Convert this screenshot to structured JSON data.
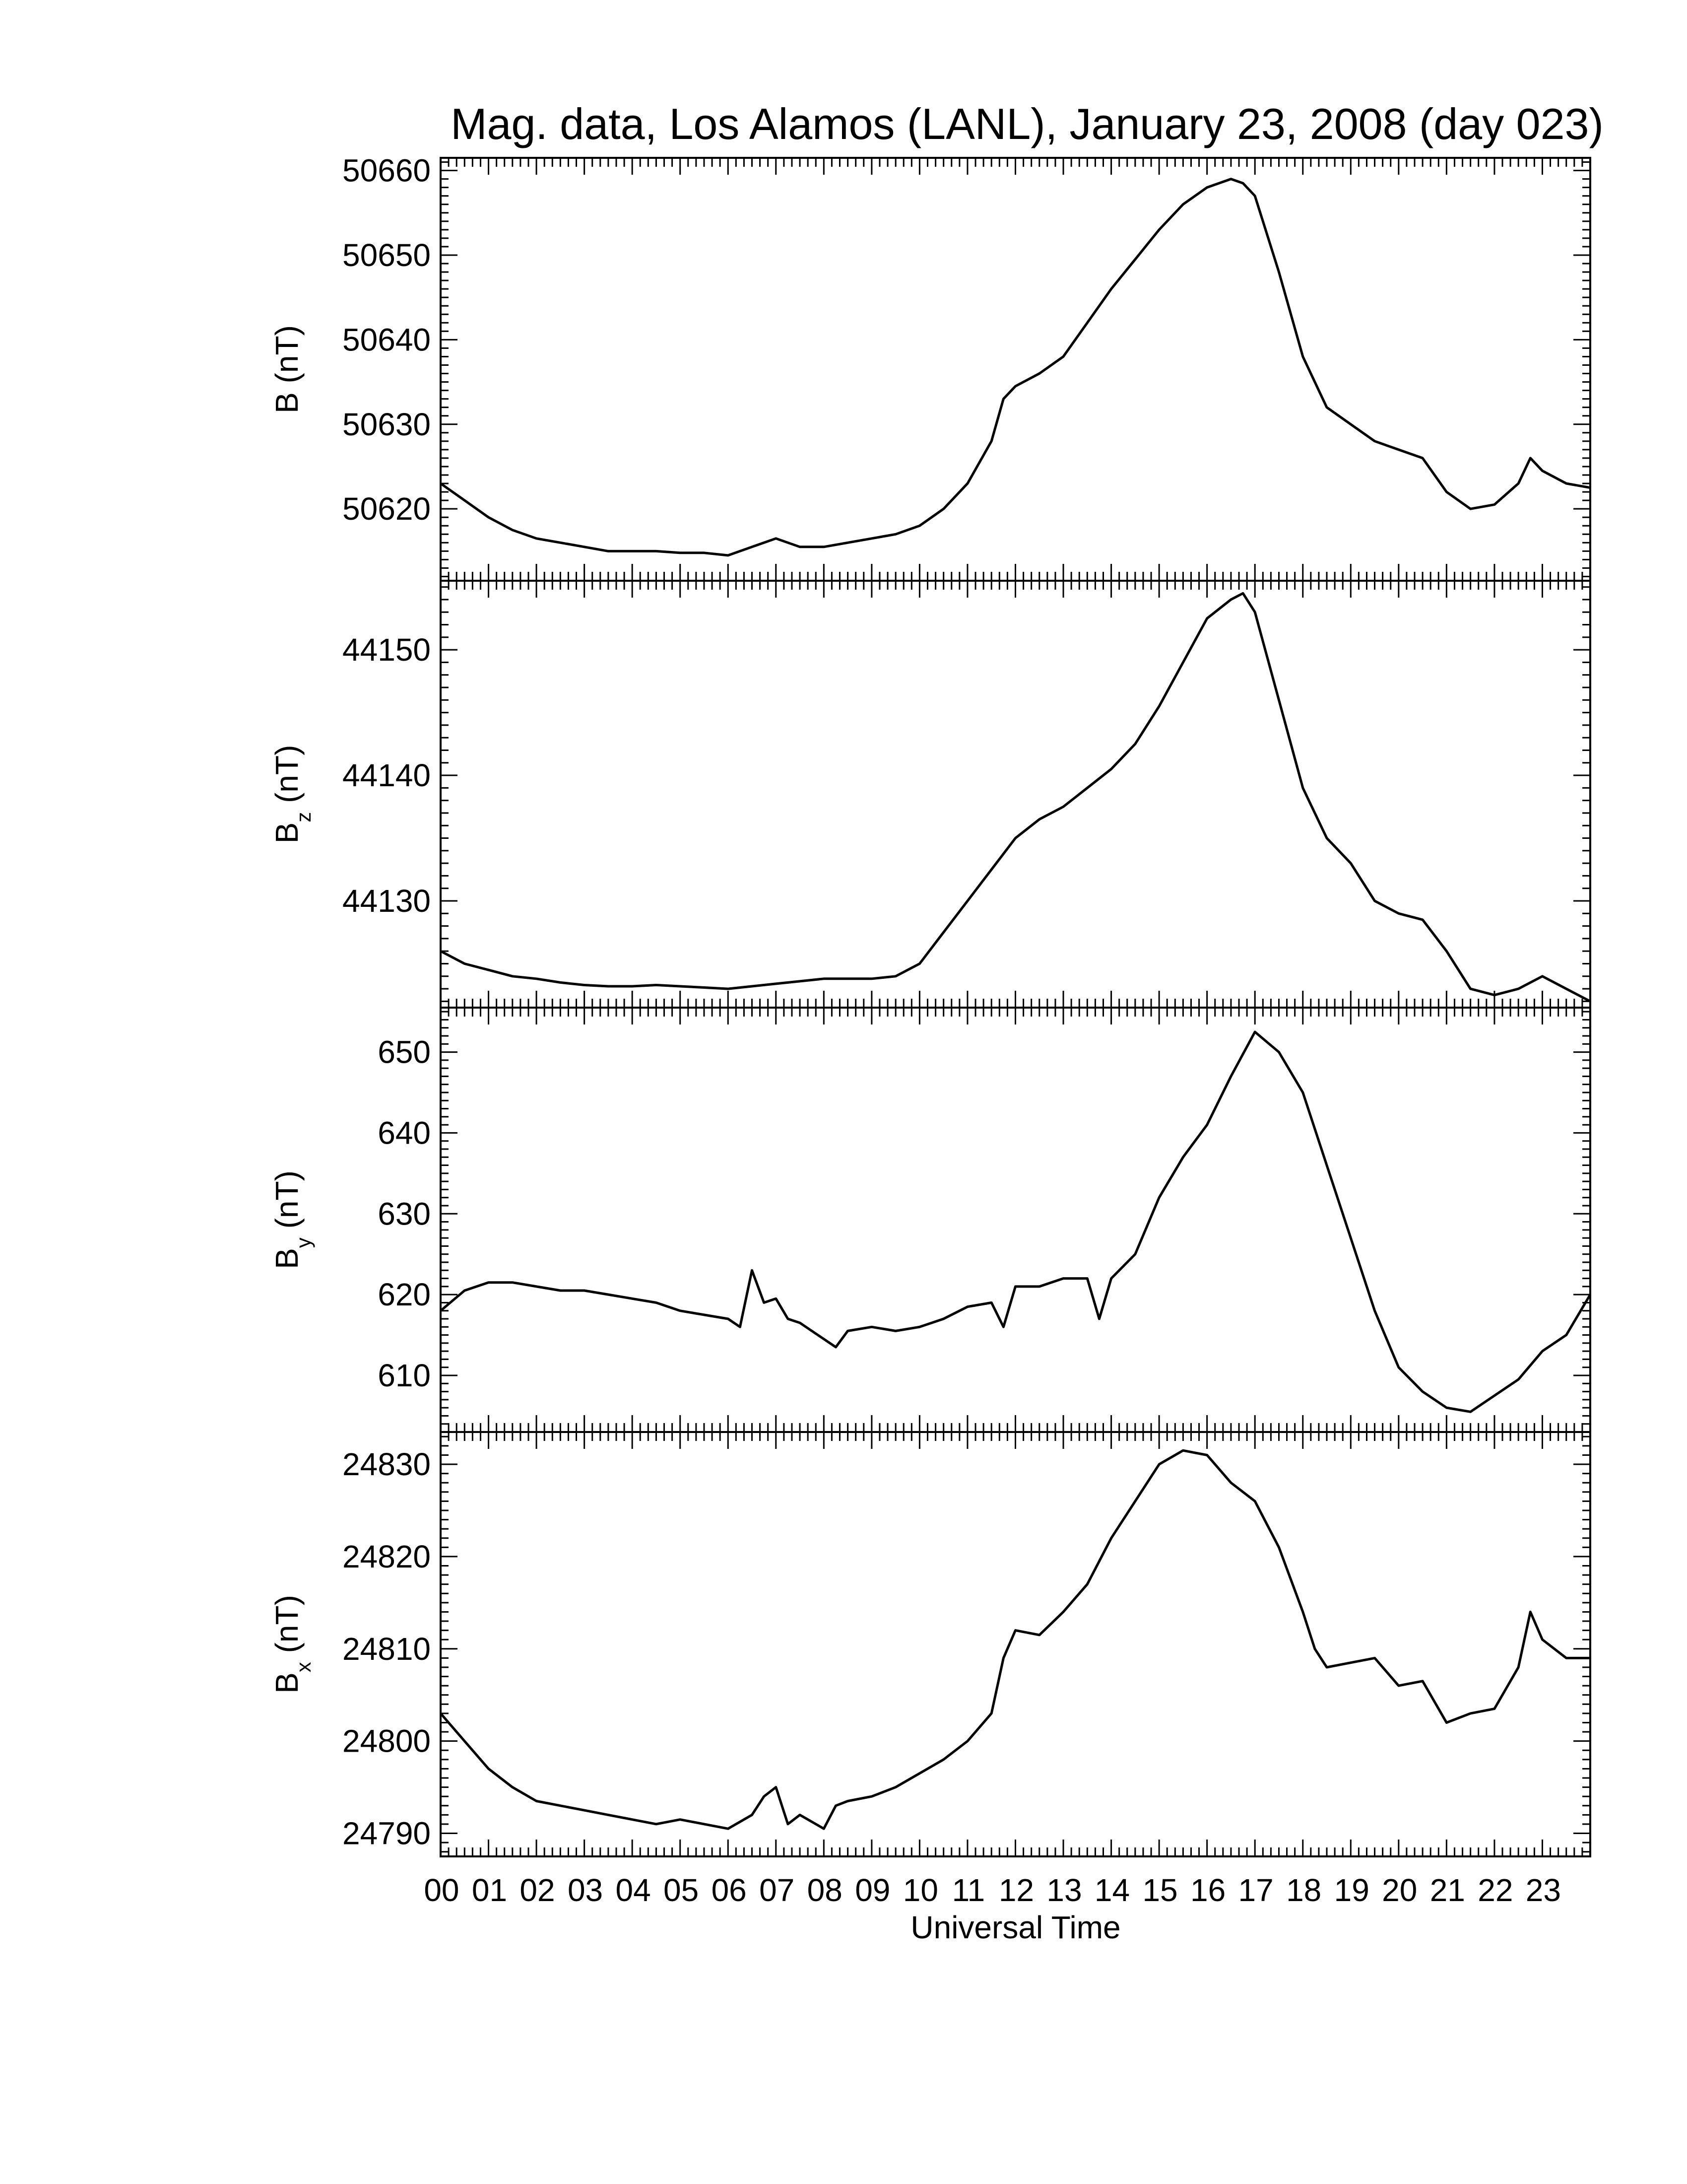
{
  "figure": {
    "title": "Mag. data, Los Alamos (LANL), January 23, 2008 (day 023)",
    "xlabel": "Universal Time",
    "xticks": [
      "00",
      "01",
      "02",
      "03",
      "04",
      "05",
      "06",
      "07",
      "08",
      "09",
      "10",
      "11",
      "12",
      "13",
      "14",
      "15",
      "16",
      "17",
      "18",
      "19",
      "20",
      "21",
      "22",
      "23"
    ]
  },
  "chart_data": [
    {
      "type": "line",
      "ylabel": "B (nT)",
      "ylabel_main": "B",
      "ylabel_sub": "",
      "ylabel_unit": " (nT)",
      "ylim": [
        50611.5,
        50661.5
      ],
      "yticks": [
        50620,
        50630,
        50640,
        50650,
        50660
      ],
      "xlim": [
        0,
        24
      ],
      "x": [
        0,
        0.5,
        1,
        1.5,
        2,
        2.5,
        3,
        3.5,
        4,
        4.5,
        5,
        5.5,
        6,
        6.5,
        7,
        7.5,
        8,
        8.5,
        9,
        9.5,
        10,
        10.5,
        11,
        11.5,
        11.75,
        12,
        12.5,
        13,
        13.5,
        14,
        14.5,
        15,
        15.5,
        16,
        16.25,
        16.5,
        16.75,
        17,
        17.5,
        18,
        18.5,
        19,
        19.5,
        20,
        20.5,
        21,
        21.5,
        22,
        22.5,
        22.75,
        23,
        23.5,
        24
      ],
      "values": [
        50623,
        50621,
        50619,
        50617.5,
        50616.5,
        50616,
        50615.5,
        50615,
        50615,
        50615,
        50614.8,
        50614.8,
        50614.5,
        50615.5,
        50616.5,
        50615.5,
        50615.5,
        50616,
        50616.5,
        50617,
        50618,
        50620,
        50623,
        50628,
        50633,
        50634.5,
        50636,
        50638,
        50642,
        50646,
        50649.5,
        50653,
        50656,
        50658,
        50658.5,
        50659,
        50658.5,
        50657,
        50648,
        50638,
        50632,
        50630,
        50628,
        50627,
        50626,
        50622,
        50620,
        50620.5,
        50623,
        50626,
        50624.5,
        50623,
        50622.5
      ]
    },
    {
      "type": "line",
      "ylabel": "Bz (nT)",
      "ylabel_main": "B",
      "ylabel_sub": "z",
      "ylabel_unit": " (nT)",
      "ylim": [
        44121.5,
        44155.5
      ],
      "yticks": [
        44130,
        44140,
        44150
      ],
      "xlim": [
        0,
        24
      ],
      "x": [
        0,
        0.5,
        1,
        1.5,
        2,
        2.5,
        3,
        3.5,
        4,
        4.5,
        5,
        5.5,
        6,
        6.5,
        7,
        7.5,
        8,
        8.5,
        9,
        9.5,
        10,
        10.5,
        11,
        11.5,
        12,
        12.5,
        13,
        13.5,
        14,
        14.5,
        15,
        15.5,
        16,
        16.5,
        16.75,
        17,
        17.5,
        18,
        18.5,
        19,
        19.5,
        20,
        20.5,
        21,
        21.5,
        22,
        22.5,
        23,
        23.5,
        24
      ],
      "values": [
        44126,
        44125,
        44124.5,
        44124,
        44123.8,
        44123.5,
        44123.3,
        44123.2,
        44123.2,
        44123.3,
        44123.2,
        44123.1,
        44123,
        44123.2,
        44123.4,
        44123.6,
        44123.8,
        44123.8,
        44123.8,
        44124,
        44125,
        44127.5,
        44130,
        44132.5,
        44135,
        44136.5,
        44137.5,
        44139,
        44140.5,
        44142.5,
        44145.5,
        44149,
        44152.5,
        44154,
        44154.5,
        44153,
        44146,
        44139,
        44135,
        44133,
        44130,
        44129,
        44128.5,
        44126,
        44123,
        44122.5,
        44123,
        44124,
        44123,
        44122
      ]
    },
    {
      "type": "line",
      "ylabel": "By (nT)",
      "ylabel_main": "B",
      "ylabel_sub": "y",
      "ylabel_unit": " (nT)",
      "ylim": [
        603,
        655.5
      ],
      "yticks": [
        610,
        620,
        630,
        640,
        650
      ],
      "xlim": [
        0,
        24
      ],
      "x": [
        0,
        0.5,
        1,
        1.5,
        2,
        2.5,
        3,
        3.5,
        4,
        4.5,
        5,
        5.5,
        6,
        6.25,
        6.5,
        6.75,
        7,
        7.25,
        7.5,
        8,
        8.25,
        8.5,
        9,
        9.5,
        10,
        10.5,
        11,
        11.5,
        11.75,
        12,
        12.5,
        13,
        13.5,
        13.75,
        14,
        14.5,
        15,
        15.5,
        16,
        16.5,
        17,
        17.5,
        18,
        18.5,
        19,
        19.5,
        20,
        20.5,
        21,
        21.5,
        22,
        22.5,
        23,
        23.5,
        24
      ],
      "values": [
        618,
        620.5,
        621.5,
        621.5,
        621,
        620.5,
        620.5,
        620,
        619.5,
        619,
        618,
        617.5,
        617,
        616,
        623,
        619,
        619.5,
        617,
        616.5,
        614.5,
        613.5,
        615.5,
        616,
        615.5,
        616,
        617,
        618.5,
        619,
        616,
        621,
        621,
        622,
        622,
        617,
        622,
        625,
        632,
        637,
        641,
        647,
        652.5,
        650,
        645,
        636,
        627,
        618,
        611,
        608,
        606,
        605.5,
        607.5,
        609.5,
        613,
        615,
        620
      ]
    },
    {
      "type": "line",
      "ylabel": "Bx (nT)",
      "ylabel_main": "B",
      "ylabel_sub": "x",
      "ylabel_unit": " (nT)",
      "ylim": [
        24787.5,
        24833.5
      ],
      "yticks": [
        24790,
        24800,
        24810,
        24820,
        24830
      ],
      "xlim": [
        0,
        24
      ],
      "x": [
        0,
        0.5,
        1,
        1.5,
        2,
        2.5,
        3,
        3.5,
        4,
        4.5,
        5,
        5.5,
        6,
        6.5,
        6.75,
        7,
        7.25,
        7.5,
        8,
        8.25,
        8.5,
        9,
        9.5,
        10,
        10.5,
        11,
        11.5,
        11.75,
        12,
        12.5,
        13,
        13.5,
        14,
        14.5,
        15,
        15.5,
        16,
        16.5,
        17,
        17.5,
        18,
        18.25,
        18.5,
        19,
        19.5,
        20,
        20.5,
        21,
        21.5,
        22,
        22.5,
        22.75,
        23,
        23.5,
        24
      ],
      "values": [
        24803,
        24800,
        24797,
        24795,
        24793.5,
        24793,
        24792.5,
        24792,
        24791.5,
        24791,
        24791.5,
        24791,
        24790.5,
        24792,
        24794,
        24795,
        24791,
        24792,
        24790.5,
        24793,
        24793.5,
        24794,
        24795,
        24796.5,
        24798,
        24800,
        24803,
        24809,
        24812,
        24811.5,
        24814,
        24817,
        24822,
        24826,
        24830,
        24831.5,
        24831,
        24828,
        24826,
        24821,
        24814,
        24810,
        24808,
        24808.5,
        24809,
        24806,
        24806.5,
        24802,
        24803,
        24803.5,
        24808,
        24814,
        24811,
        24809,
        24809
      ]
    }
  ]
}
